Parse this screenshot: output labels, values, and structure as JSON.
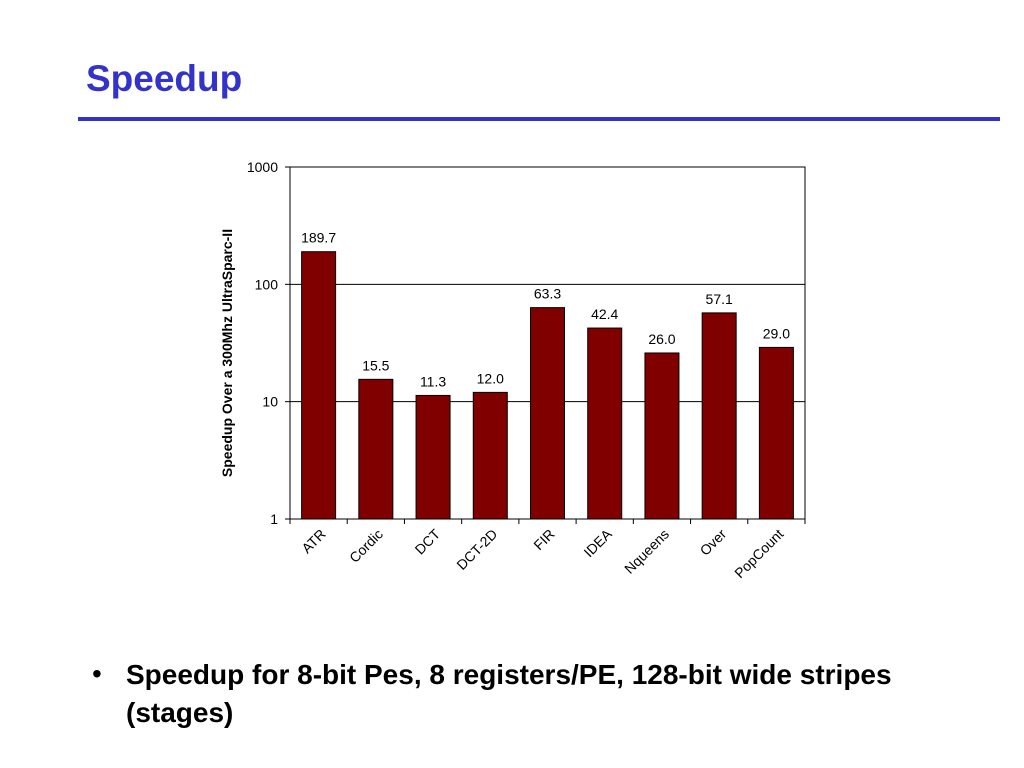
{
  "slide": {
    "title": "Speedup",
    "bullet": "Speedup for 8-bit Pes, 8 registers/PE, 128-bit wide stripes (stages)",
    "title_color": "#3333cc"
  },
  "chart_data": {
    "type": "bar",
    "categories": [
      "ATR",
      "Cordic",
      "DCT",
      "DCT-2D",
      "FIR",
      "IDEA",
      "Nqueens",
      "Over",
      "PopCount"
    ],
    "values": [
      189.7,
      15.5,
      11.3,
      12.0,
      63.3,
      42.4,
      26.0,
      57.1,
      29.0
    ],
    "value_labels": [
      "189.7",
      "15.5",
      "11.3",
      "12.0",
      "63.3",
      "42.4",
      "26.0",
      "57.1",
      "29.0"
    ],
    "ylabel": "Speedup Over a 300Mhz UltraSparc-II",
    "xlabel": "",
    "yscale": "log",
    "ylim": [
      1,
      1000
    ],
    "yticks": [
      "1",
      "10",
      "100",
      "1000"
    ],
    "ytick_values": [
      1,
      10,
      100,
      1000
    ],
    "grid": true,
    "bar_color": "#800000",
    "legend": "none"
  }
}
